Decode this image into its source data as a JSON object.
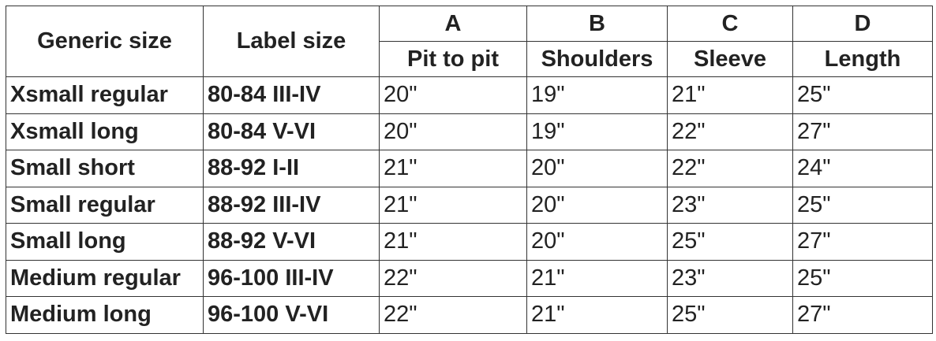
{
  "table": {
    "header": {
      "generic": "Generic size",
      "label": "Label size",
      "groups": [
        {
          "letter": "A",
          "measure": "Pit to pit"
        },
        {
          "letter": "B",
          "measure": "Shoulders"
        },
        {
          "letter": "C",
          "measure": "Sleeve"
        },
        {
          "letter": "D",
          "measure": "Length"
        }
      ]
    },
    "rows": [
      [
        "Xsmall regular",
        "80-84 III-IV",
        "20\"",
        "19\"",
        "21\"",
        "25\""
      ],
      [
        "Xsmall long",
        "80-84 V-VI",
        "20\"",
        "19\"",
        "22\"",
        "27\""
      ],
      [
        "Small short",
        "88-92 I-II",
        "21\"",
        "20\"",
        "22\"",
        "24\""
      ],
      [
        "Small regular",
        "88-92 III-IV",
        "21\"",
        "20\"",
        "23\"",
        "25\""
      ],
      [
        "Small long",
        "88-92 V-VI",
        "21\"",
        "20\"",
        "25\"",
        "27\""
      ],
      [
        "Medium regular",
        "96-100 III-IV",
        "22\"",
        "21\"",
        "23\"",
        "25\""
      ],
      [
        "Medium long",
        "96-100 V-VI",
        "22\"",
        "21\"",
        "25\"",
        "27\""
      ]
    ]
  }
}
